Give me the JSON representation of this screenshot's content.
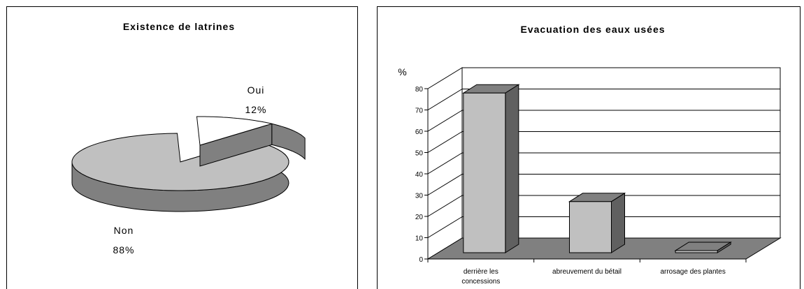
{
  "chart_data": [
    {
      "type": "pie",
      "title": "Existence de latrines",
      "categories": [
        "Oui",
        "Non"
      ],
      "values": [
        12,
        88
      ],
      "value_labels": [
        "12%",
        "88%"
      ],
      "exploded": "Oui",
      "three_d": true,
      "colors": {
        "Oui": "#ffffff",
        "Non": "#c0c0c0",
        "side": "#808080"
      }
    },
    {
      "type": "bar",
      "title": "Evacuation des eaux usées",
      "ylabel": "%",
      "ylim": [
        0,
        80
      ],
      "yticks": [
        0,
        10,
        20,
        30,
        40,
        50,
        60,
        70,
        80
      ],
      "categories": [
        "derrière les concessions",
        "abreuvement du bétail",
        "arrosage des plantes"
      ],
      "category_lines": [
        [
          "derrière les",
          "concessions"
        ],
        [
          "abreuvement du bétail"
        ],
        [
          "arrosage des plantes"
        ]
      ],
      "values": [
        75,
        24,
        1
      ],
      "grid": true,
      "three_d": true,
      "colors": {
        "bar_front": "#c0c0c0",
        "bar_side": "#606060",
        "bar_top": "#808080",
        "floor": "#808080"
      }
    }
  ]
}
